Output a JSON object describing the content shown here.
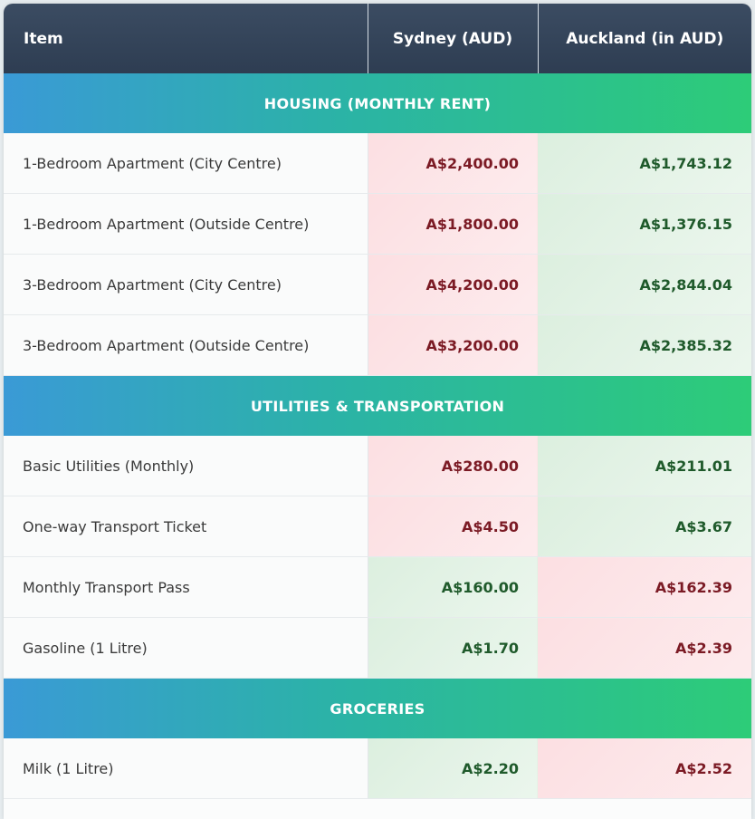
{
  "header": {
    "item": "Item",
    "sydney": "Sydney (AUD)",
    "auckland": "Auckland (in AUD)"
  },
  "colors": {
    "higher": "#7b1a24",
    "lower": "#1f5a2b"
  },
  "sections": [
    {
      "title": "HOUSING (MONTHLY RENT)",
      "rows": [
        {
          "item": "1-Bedroom Apartment (City Centre)",
          "sydney": "A$2,400.00",
          "auckland": "A$1,743.12"
        },
        {
          "item": "1-Bedroom Apartment (Outside Centre)",
          "sydney": "A$1,800.00",
          "auckland": "A$1,376.15"
        },
        {
          "item": "3-Bedroom Apartment (City Centre)",
          "sydney": "A$4,200.00",
          "auckland": "A$2,844.04"
        },
        {
          "item": "3-Bedroom Apartment (Outside Centre)",
          "sydney": "A$3,200.00",
          "auckland": "A$2,385.32"
        }
      ]
    },
    {
      "title": "UTILITIES & TRANSPORTATION",
      "rows": [
        {
          "item": "Basic Utilities (Monthly)",
          "sydney": "A$280.00",
          "auckland": "A$211.01"
        },
        {
          "item": "One-way Transport Ticket",
          "sydney": "A$4.50",
          "auckland": "A$3.67"
        },
        {
          "item": "Monthly Transport Pass",
          "sydney": "A$160.00",
          "auckland": "A$162.39"
        },
        {
          "item": "Gasoline (1 Litre)",
          "sydney": "A$1.70",
          "auckland": "A$2.39"
        }
      ]
    },
    {
      "title": "GROCERIES",
      "rows": [
        {
          "item": "Milk (1 Litre)",
          "sydney": "A$2.20",
          "auckland": "A$2.52"
        }
      ]
    }
  ]
}
